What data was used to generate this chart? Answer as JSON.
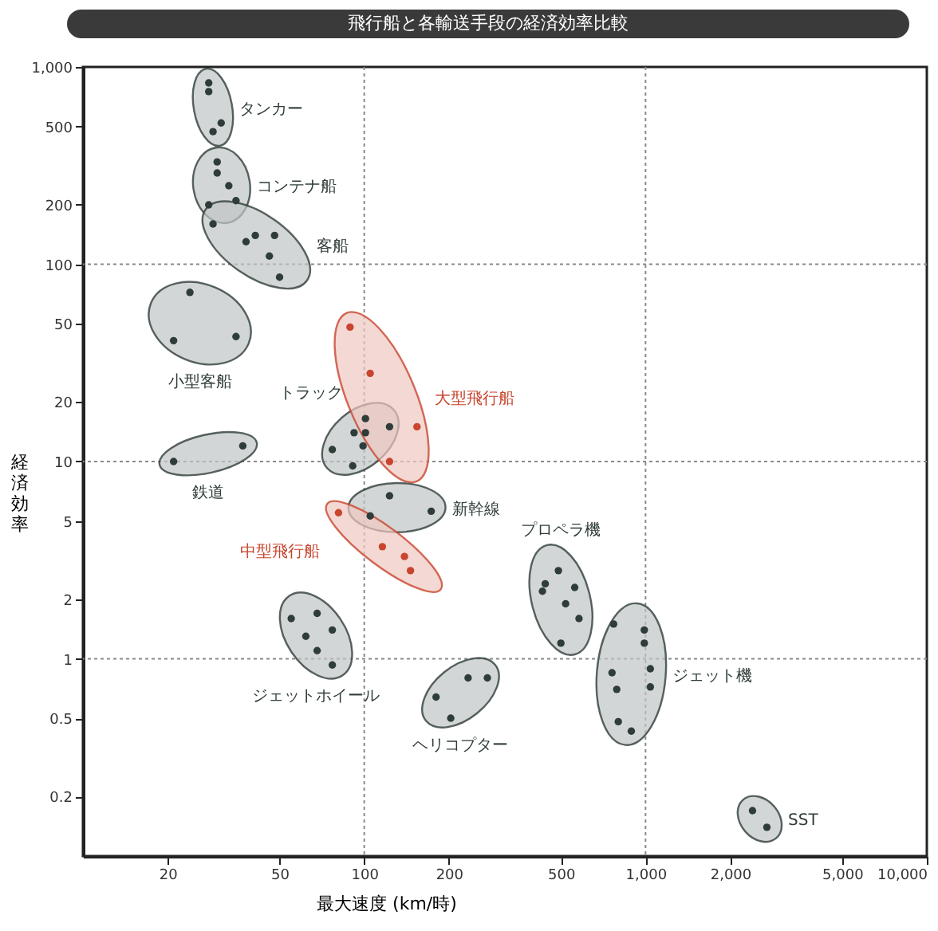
{
  "chart_data": {
    "type": "scatter",
    "title": "飛行船と各輸送手段の経済効率比較",
    "xlabel": "最大速度 (km/時)",
    "ylabel": "経済効率",
    "log": "xy",
    "grid": false,
    "legend": false,
    "marker": "circle",
    "xlim": [
      10,
      10000
    ],
    "xticks": [
      20,
      50,
      100,
      200,
      500,
      {
        "value": 1000,
        "label": "1,000"
      },
      {
        "value": 2000,
        "label": "2,000"
      },
      {
        "value": 5000,
        "label": "5,000"
      },
      {
        "value": 10000,
        "label": "10,000"
      }
    ],
    "ylim": [
      0.1,
      1000
    ],
    "yticks": [
      0.2,
      0.5,
      1,
      2,
      5,
      10,
      20,
      50,
      100,
      200,
      500,
      {
        "value": 1000,
        "label": "1,000"
      }
    ],
    "ref_lines": [
      {
        "axis": "x",
        "value": 100,
        "color": "#8a8a8a",
        "line_style": "dotted"
      },
      {
        "axis": "x",
        "value": 1000,
        "color": "#8a8a8a",
        "line_style": "dotted"
      },
      {
        "axis": "y",
        "value": 100,
        "color": "#8a8a8a",
        "line_style": "dotted"
      },
      {
        "axis": "y",
        "value": 10,
        "color": "#8a8a8a",
        "line_style": "dotted"
      },
      {
        "axis": "y",
        "value": 1,
        "color": "#8a8a8a",
        "line_style": "dotted"
      }
    ],
    "series": [
      {
        "name": "タンカー",
        "color": "#2f3d39",
        "x": [
          28,
          28,
          31,
          29
        ],
        "values": [
          830,
          750,
          520,
          470
        ]
      },
      {
        "name": "コンテナ船",
        "color": "#2f3d39",
        "x": [
          30,
          30,
          33,
          35,
          28
        ],
        "values": [
          330,
          290,
          250,
          210,
          200
        ]
      },
      {
        "name": "客船",
        "color": "#2f3d39",
        "x": [
          29,
          38,
          41,
          48,
          46,
          50
        ],
        "values": [
          160,
          130,
          140,
          140,
          110,
          86
        ]
      },
      {
        "name": "小型客船",
        "color": "#2f3d39",
        "x": [
          24,
          21,
          35
        ],
        "values": [
          72,
          41,
          43
        ]
      },
      {
        "name": "鉄道",
        "color": "#2f3d39",
        "x": [
          21,
          37
        ],
        "values": [
          10,
          12
        ]
      },
      {
        "name": "トラック",
        "color": "#2f3d39",
        "x": [
          101,
          92,
          101,
          99,
          77,
          91,
          123
        ],
        "values": [
          16.5,
          14,
          14,
          12,
          11.5,
          9.5,
          15
        ]
      },
      {
        "name": "大型飛行船",
        "color": "#c8452e",
        "x": [
          89,
          105,
          154,
          123
        ],
        "values": [
          48,
          28,
          15,
          10
        ]
      },
      {
        "name": "新幹線",
        "color": "#2f3d39",
        "x": [
          123,
          173,
          105
        ],
        "values": [
          6.7,
          5.6,
          5.3
        ]
      },
      {
        "name": "中型飛行船",
        "color": "#c8452e",
        "x": [
          81,
          116,
          139,
          146
        ],
        "values": [
          5.5,
          3.7,
          3.3,
          2.8
        ]
      },
      {
        "name": "ジェットホイール",
        "color": "#2f3d39",
        "x": [
          55,
          68,
          62,
          77,
          68,
          77
        ],
        "values": [
          1.6,
          1.7,
          1.3,
          1.4,
          1.1,
          0.93
        ]
      },
      {
        "name": "ヘリコプター",
        "color": "#2f3d39",
        "x": [
          180,
          203,
          234,
          274
        ],
        "values": [
          0.64,
          0.5,
          0.8,
          0.8
        ]
      },
      {
        "name": "プロペラ機",
        "color": "#2f3d39",
        "x": [
          490,
          440,
          430,
          560,
          520,
          580,
          500
        ],
        "values": [
          2.8,
          2.4,
          2.2,
          2.3,
          1.9,
          1.6,
          1.2
        ]
      },
      {
        "name": "ジェット機",
        "color": "#2f3d39",
        "x": [
          770,
          990,
          990,
          760,
          1040,
          790,
          1040,
          800,
          890
        ],
        "values": [
          1.5,
          1.4,
          1.2,
          0.85,
          0.89,
          0.7,
          0.72,
          0.48,
          0.43
        ]
      },
      {
        "name": "SST",
        "color": "#2f3d39",
        "x": [
          2400,
          2700
        ],
        "values": [
          0.17,
          0.14
        ]
      }
    ]
  }
}
